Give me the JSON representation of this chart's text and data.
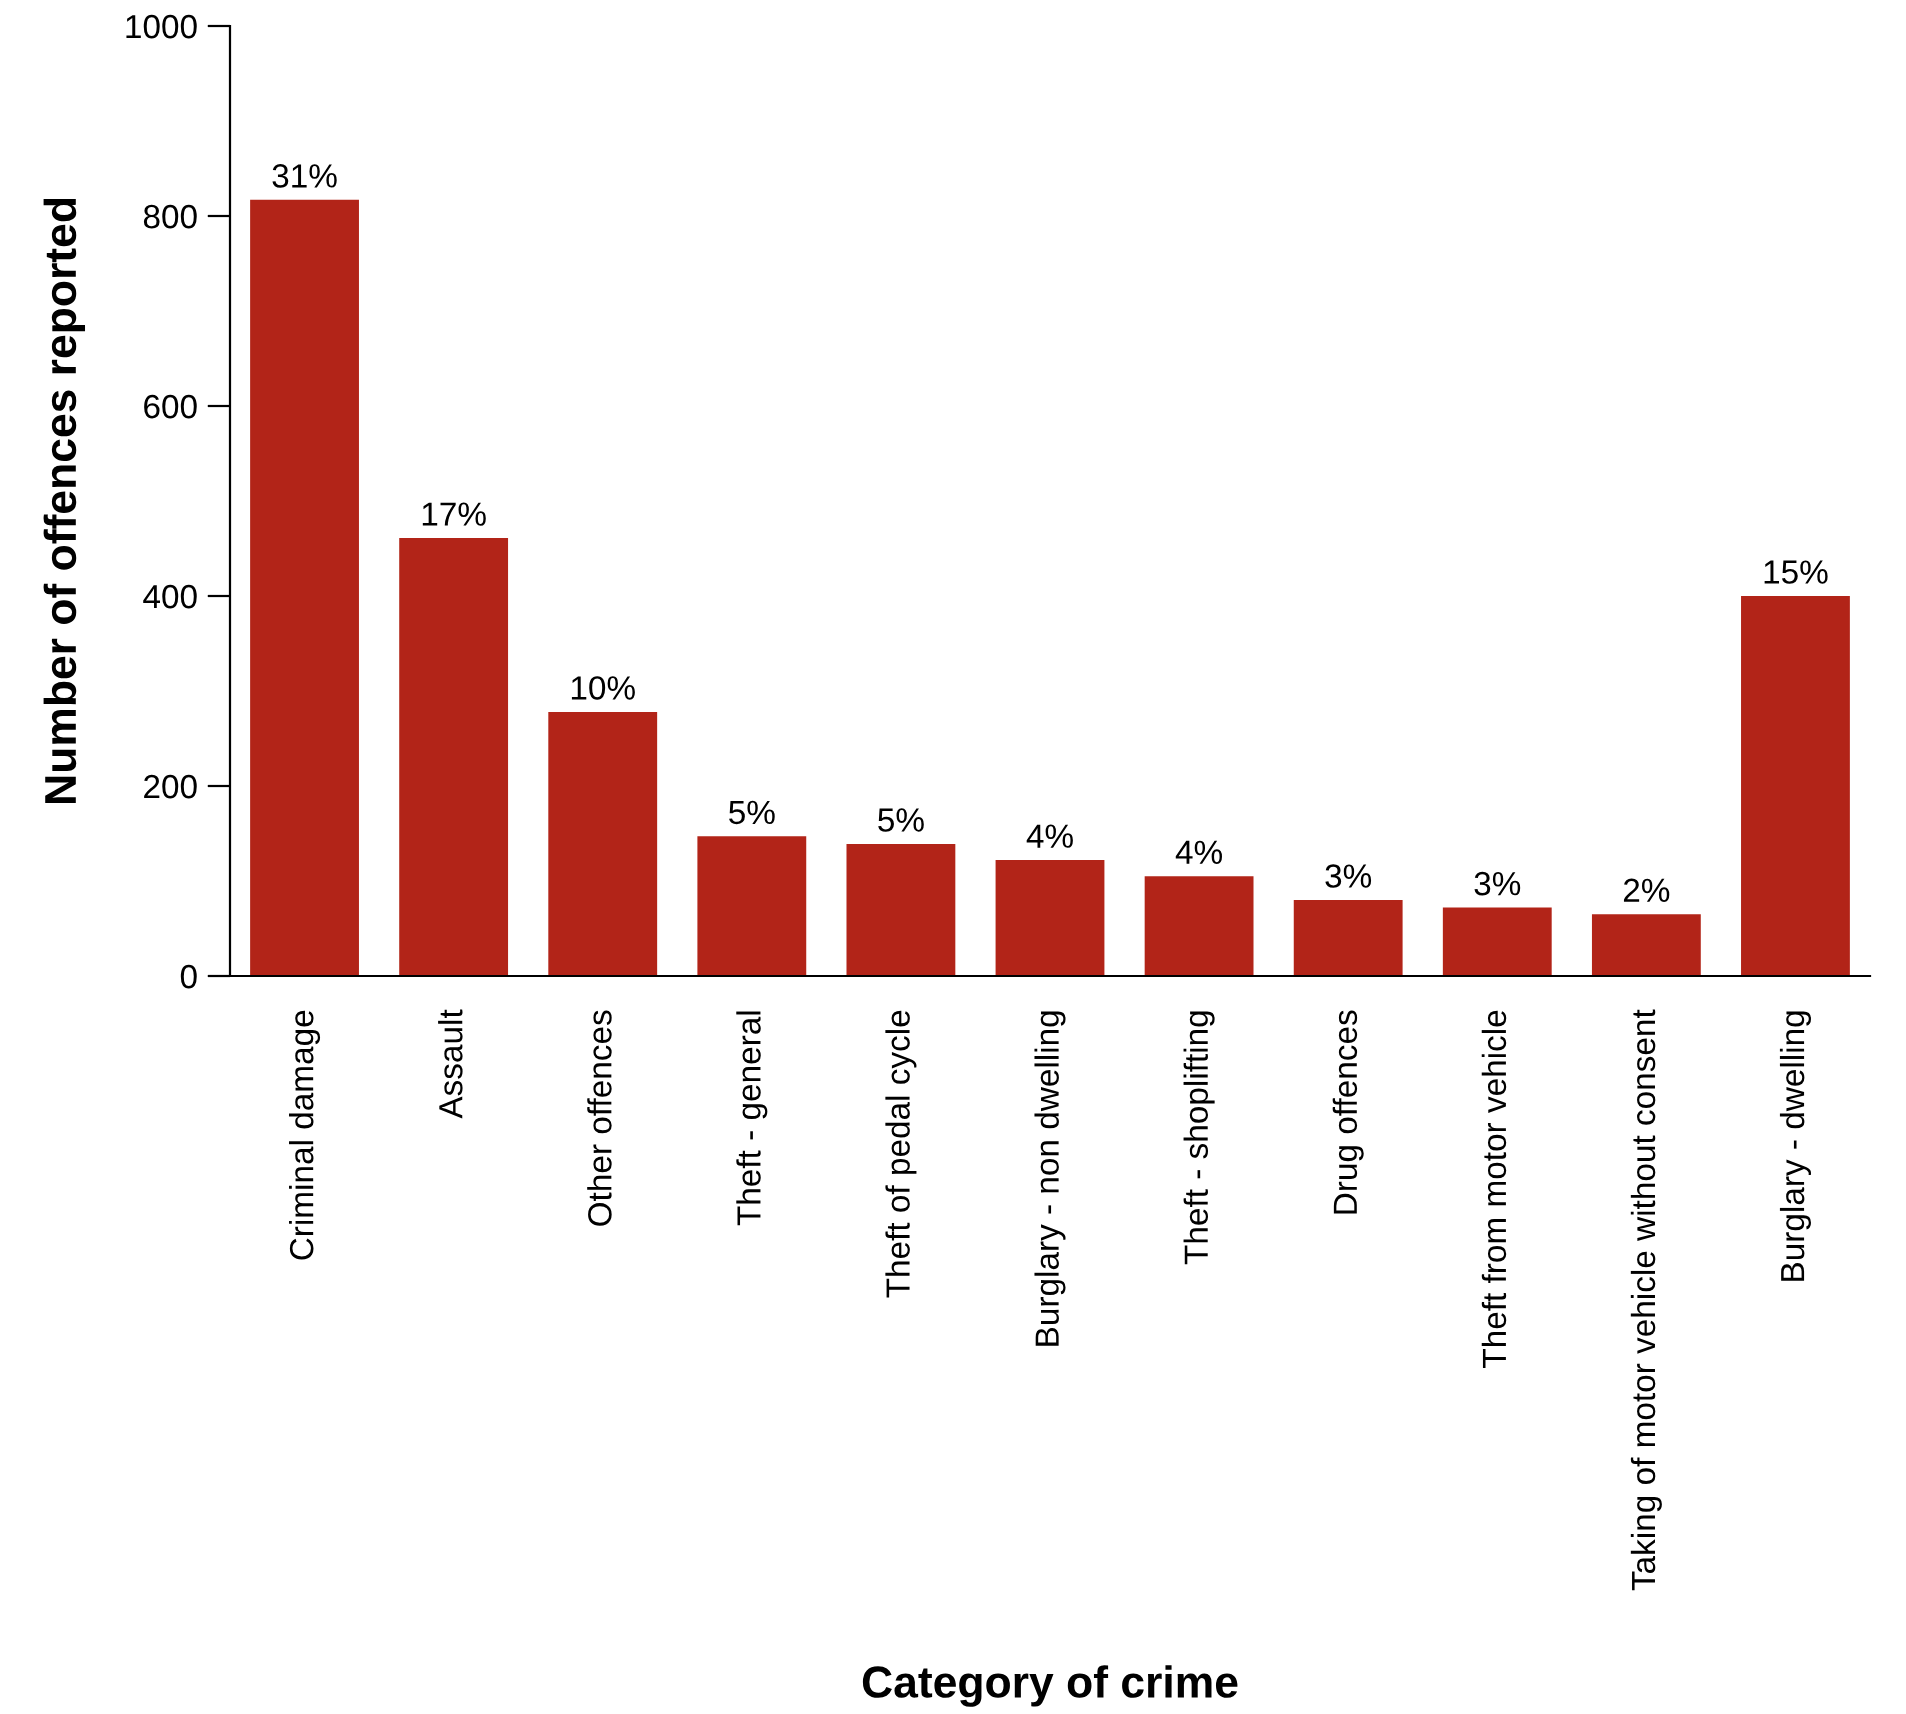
{
  "chart_data": {
    "type": "bar",
    "xlabel": "Category of crime",
    "ylabel": "Number of offences reported",
    "categories": [
      "Criminal damage",
      "Assault",
      "Other offences",
      "Theft - general",
      "Theft of pedal cycle",
      "Burglary - non dwelling",
      "Theft - shoplifting",
      "Drug offences",
      "Theft from motor vehicle",
      "Taking of motor vehicle without consent",
      "Burglary - dwelling"
    ],
    "values": [
      817,
      461,
      278,
      147,
      139,
      122,
      105,
      80,
      72,
      65,
      400
    ],
    "annotations": [
      {
        "text": "31%",
        "x": "Criminal damage",
        "y": 817
      },
      {
        "text": "17%",
        "x": "Assault",
        "y": 461
      },
      {
        "text": "10%",
        "x": "Other offences",
        "y": 278
      },
      {
        "text": "5%",
        "x": "Theft - general",
        "y": 147
      },
      {
        "text": "5%",
        "x": "Theft of pedal cycle",
        "y": 139
      },
      {
        "text": "4%",
        "x": "Burglary - non dwelling",
        "y": 122
      },
      {
        "text": "4%",
        "x": "Theft - shoplifting",
        "y": 105
      },
      {
        "text": "3%",
        "x": "Drug offences",
        "y": 80
      },
      {
        "text": "3%",
        "x": "Theft from motor vehicle",
        "y": 72
      },
      {
        "text": "2%",
        "x": "Taking of motor vehicle without consent",
        "y": 65
      },
      {
        "text": "15%",
        "x": "Burglary - dwelling",
        "y": 400
      }
    ],
    "color": "#b22418",
    "ylim": [
      0,
      1000
    ],
    "yticks": [
      0,
      200,
      400,
      600,
      800,
      1000
    ],
    "grid": false
  }
}
